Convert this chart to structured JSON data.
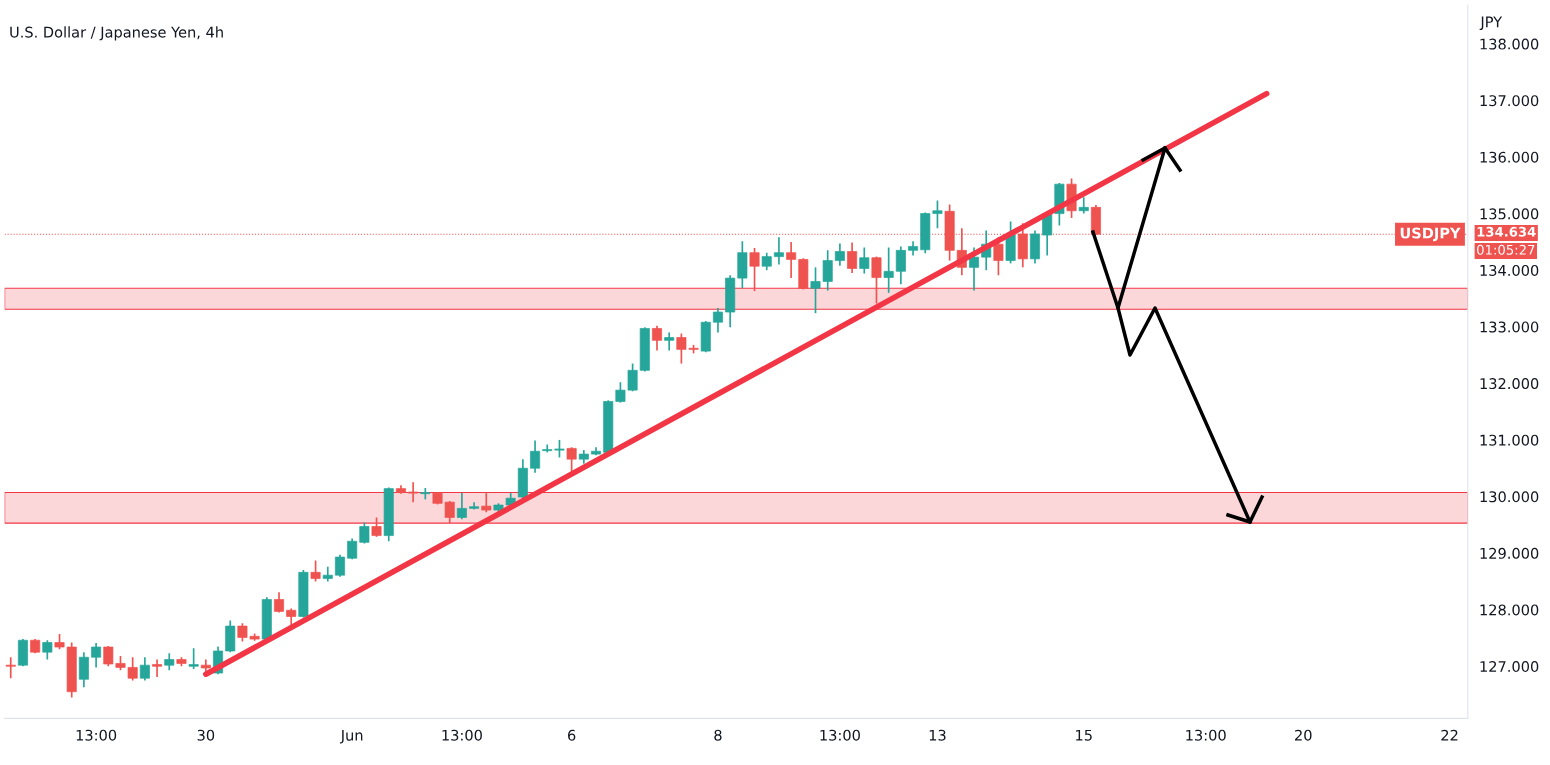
{
  "chart_data": {
    "type": "candlestick",
    "title": "U.S. Dollar / Japanese Yen, 4h",
    "ylabel": "JPY",
    "categories": [
      null,
      null,
      null,
      null,
      null,
      null,
      null,
      "13:00",
      null,
      null,
      null,
      null,
      null,
      null,
      null,
      null,
      "30",
      null,
      null,
      null,
      null,
      null,
      null,
      null,
      null,
      null,
      null,
      null,
      "Jun",
      null,
      null,
      null,
      null,
      null,
      null,
      null,
      null,
      "13:00",
      null,
      null,
      null,
      null,
      null,
      null,
      null,
      null,
      "6",
      null,
      null,
      null,
      null,
      null,
      null,
      null,
      null,
      null,
      null,
      null,
      "8",
      null,
      null,
      null,
      null,
      null,
      null,
      null,
      null,
      null,
      "13:00",
      null,
      null,
      null,
      null,
      null,
      null,
      null,
      "13",
      null,
      null,
      null,
      null,
      null,
      null,
      null,
      null,
      null,
      null,
      null,
      "15",
      null,
      null,
      null,
      null,
      null,
      null,
      null,
      null,
      null,
      "13:00",
      null,
      null,
      null,
      null,
      null,
      null,
      null,
      "20",
      null,
      null,
      null,
      null,
      null,
      null,
      null,
      null,
      null,
      null,
      null,
      "22",
      null
    ],
    "ohlc": [
      [
        127.02,
        127.16,
        126.79,
        127.0
      ],
      [
        127.02,
        127.48,
        127.0,
        127.46
      ],
      [
        127.46,
        127.48,
        127.23,
        127.25
      ],
      [
        127.25,
        127.46,
        127.12,
        127.42
      ],
      [
        127.42,
        127.57,
        127.3,
        127.34
      ],
      [
        127.34,
        127.42,
        126.45,
        126.55
      ],
      [
        126.77,
        127.25,
        126.63,
        127.16
      ],
      [
        127.16,
        127.41,
        126.98,
        127.34
      ],
      [
        127.34,
        127.36,
        127.0,
        127.04
      ],
      [
        127.05,
        127.18,
        126.93,
        126.98
      ],
      [
        126.98,
        127.16,
        126.75,
        126.79
      ],
      [
        126.79,
        127.16,
        126.75,
        127.02
      ],
      [
        127.03,
        127.12,
        126.81,
        127.0
      ],
      [
        127.02,
        127.23,
        126.93,
        127.12
      ],
      [
        127.12,
        127.16,
        127.0,
        127.05
      ],
      [
        127.0,
        127.32,
        126.95,
        127.03
      ],
      [
        127.02,
        127.12,
        126.9,
        126.97
      ],
      [
        126.88,
        127.35,
        126.86,
        127.27
      ],
      [
        127.27,
        127.81,
        127.25,
        127.71
      ],
      [
        127.71,
        127.76,
        127.44,
        127.51
      ],
      [
        127.53,
        127.58,
        127.45,
        127.48
      ],
      [
        127.48,
        128.22,
        127.46,
        128.18
      ],
      [
        128.18,
        128.31,
        127.95,
        127.97
      ],
      [
        127.99,
        128.02,
        127.72,
        127.88
      ],
      [
        127.88,
        128.7,
        127.86,
        128.66
      ],
      [
        128.66,
        128.87,
        128.5,
        128.55
      ],
      [
        128.55,
        128.76,
        128.5,
        128.61
      ],
      [
        128.61,
        128.97,
        128.58,
        128.93
      ],
      [
        128.91,
        129.26,
        128.89,
        129.21
      ],
      [
        129.19,
        129.54,
        129.17,
        129.47
      ],
      [
        129.47,
        129.63,
        129.29,
        129.31
      ],
      [
        129.31,
        130.16,
        129.21,
        130.14
      ],
      [
        130.14,
        130.2,
        130.05,
        130.07
      ],
      [
        130.08,
        130.25,
        129.9,
        130.06
      ],
      [
        130.05,
        130.15,
        129.95,
        130.07
      ],
      [
        130.06,
        130.08,
        129.86,
        129.88
      ],
      [
        129.9,
        129.92,
        129.53,
        129.63
      ],
      [
        129.63,
        130.06,
        129.6,
        129.79
      ],
      [
        129.79,
        129.9,
        129.77,
        129.82
      ],
      [
        129.83,
        130.06,
        129.72,
        129.76
      ],
      [
        129.76,
        129.88,
        129.73,
        129.85
      ],
      [
        129.85,
        130.06,
        129.83,
        129.97
      ],
      [
        129.99,
        130.66,
        129.97,
        130.5
      ],
      [
        130.5,
        130.99,
        130.42,
        130.8
      ],
      [
        130.81,
        130.92,
        130.78,
        130.83
      ],
      [
        130.82,
        131.0,
        130.69,
        130.84
      ],
      [
        130.85,
        130.87,
        130.43,
        130.66
      ],
      [
        130.66,
        130.82,
        130.58,
        130.75
      ],
      [
        130.75,
        130.87,
        130.73,
        130.8
      ],
      [
        130.78,
        131.7,
        130.76,
        131.68
      ],
      [
        131.68,
        132.02,
        131.66,
        131.88
      ],
      [
        131.88,
        132.35,
        131.86,
        132.23
      ],
      [
        132.23,
        132.99,
        132.21,
        132.97
      ],
      [
        132.97,
        133.02,
        132.58,
        132.76
      ],
      [
        132.76,
        132.9,
        132.58,
        132.81
      ],
      [
        132.81,
        132.88,
        132.35,
        132.6
      ],
      [
        132.62,
        132.68,
        132.53,
        132.6
      ],
      [
        132.57,
        133.1,
        132.55,
        133.08
      ],
      [
        133.08,
        133.33,
        132.9,
        133.26
      ],
      [
        133.26,
        133.91,
        132.99,
        133.86
      ],
      [
        133.86,
        134.51,
        133.68,
        134.31
      ],
      [
        134.31,
        134.39,
        133.63,
        134.07
      ],
      [
        134.07,
        134.31,
        134.0,
        134.24
      ],
      [
        134.24,
        134.58,
        134.1,
        134.31
      ],
      [
        134.31,
        134.5,
        133.86,
        134.19
      ],
      [
        134.19,
        134.21,
        133.66,
        133.68
      ],
      [
        133.68,
        134.05,
        133.24,
        133.8
      ],
      [
        133.8,
        134.35,
        133.64,
        134.17
      ],
      [
        134.17,
        134.47,
        134.08,
        134.33
      ],
      [
        134.33,
        134.49,
        133.95,
        134.03
      ],
      [
        134.03,
        134.4,
        133.94,
        134.22
      ],
      [
        134.22,
        134.24,
        133.41,
        133.87
      ],
      [
        133.87,
        134.4,
        133.6,
        133.98
      ],
      [
        133.98,
        134.42,
        133.75,
        134.35
      ],
      [
        134.35,
        134.51,
        134.26,
        134.42
      ],
      [
        134.36,
        135.02,
        134.3,
        135.0
      ],
      [
        135.0,
        135.23,
        134.74,
        135.05
      ],
      [
        135.04,
        135.16,
        134.17,
        134.35
      ],
      [
        134.35,
        134.74,
        133.91,
        134.05
      ],
      [
        134.05,
        134.4,
        133.64,
        134.23
      ],
      [
        134.23,
        134.7,
        134.0,
        134.46
      ],
      [
        134.46,
        134.58,
        133.91,
        134.17
      ],
      [
        134.17,
        134.86,
        134.12,
        134.62
      ],
      [
        134.64,
        134.83,
        134.05,
        134.2
      ],
      [
        134.2,
        134.7,
        134.12,
        134.64
      ],
      [
        134.62,
        135.02,
        134.26,
        135.0
      ],
      [
        135.0,
        135.54,
        134.79,
        135.52
      ],
      [
        135.52,
        135.62,
        134.92,
        135.05
      ],
      [
        135.05,
        135.29,
        135.0,
        135.11
      ],
      [
        135.11,
        135.15,
        134.62,
        134.634
      ],
      null,
      null,
      null,
      null,
      null,
      null,
      null,
      null,
      null,
      null,
      null,
      null,
      null,
      null,
      null,
      null,
      null,
      null,
      null,
      null,
      null,
      null,
      null,
      null,
      null,
      null,
      null,
      null,
      null,
      null
    ],
    "colors": [
      "#ef5350",
      "#26a69a",
      "#ef5350",
      "#26a69a",
      "#ef5350",
      "#ef5350",
      "#26a69a",
      "#26a69a",
      "#ef5350",
      "#ef5350",
      "#ef5350",
      "#26a69a",
      "#ef5350",
      "#26a69a",
      "#ef5350",
      "#26a69a",
      "#ef5350",
      "#26a69a",
      "#26a69a",
      "#ef5350",
      "#ef5350",
      "#26a69a",
      "#ef5350",
      "#ef5350",
      "#26a69a",
      "#ef5350",
      "#26a69a",
      "#26a69a",
      "#26a69a",
      "#26a69a",
      "#ef5350",
      "#26a69a",
      "#ef5350",
      "#ef5350",
      "#26a69a",
      "#ef5350",
      "#ef5350",
      "#26a69a",
      "#26a69a",
      "#ef5350",
      "#26a69a",
      "#26a69a",
      "#26a69a",
      "#26a69a",
      "#26a69a",
      "#26a69a",
      "#ef5350",
      "#26a69a",
      "#26a69a",
      "#26a69a",
      "#26a69a",
      "#26a69a",
      "#26a69a",
      "#ef5350",
      "#26a69a",
      "#ef5350",
      "#ef5350",
      "#26a69a",
      "#26a69a",
      "#26a69a",
      "#26a69a",
      "#ef5350",
      "#26a69a",
      "#26a69a",
      "#ef5350",
      "#ef5350",
      "#26a69a",
      "#26a69a",
      "#26a69a",
      "#ef5350",
      "#26a69a",
      "#ef5350",
      "#26a69a",
      "#26a69a",
      "#26a69a",
      "#26a69a",
      "#26a69a",
      "#ef5350",
      "#ef5350",
      "#26a69a",
      "#26a69a",
      "#ef5350",
      "#26a69a",
      "#ef5350",
      "#26a69a",
      "#26a69a",
      "#26a69a",
      "#ef5350",
      "#26a69a",
      "#ef5350",
      null,
      null,
      null,
      null,
      null,
      null,
      null,
      null,
      null,
      null,
      null,
      null,
      null,
      null,
      null,
      null,
      null,
      null,
      null,
      null,
      null,
      null,
      null,
      null,
      null,
      null,
      null,
      null,
      null,
      null
    ],
    "series": [
      {
        "type": "line",
        "values": [
          null,
          null,
          null,
          null,
          null,
          null,
          null,
          null,
          null,
          null,
          null,
          null,
          null,
          null,
          null,
          null,
          126.86,
          null,
          null,
          null,
          null,
          null,
          null,
          null,
          null,
          null,
          null,
          null,
          null,
          null,
          null,
          null,
          null,
          null,
          null,
          null,
          null,
          null,
          null,
          null,
          null,
          null,
          null,
          null,
          null,
          null,
          null,
          null,
          null,
          null,
          null,
          null,
          null,
          null,
          null,
          null,
          null,
          null,
          null,
          null,
          null,
          null,
          null,
          null,
          null,
          null,
          null,
          null,
          null,
          null,
          null,
          null,
          null,
          null,
          null,
          null,
          null,
          null,
          null,
          null,
          null,
          null,
          null,
          null,
          null,
          null,
          null,
          null,
          null,
          null,
          null,
          null,
          null,
          null,
          null,
          null,
          null,
          null,
          null,
          null,
          null,
          null,
          null,
          137.12,
          null,
          null,
          null,
          null,
          null,
          null,
          null,
          null,
          null,
          null,
          null,
          null,
          null,
          null,
          null,
          null
        ],
        "color": "#f23645"
      }
    ],
    "ylim": [
      126.08,
      138.68
    ],
    "yticks": [
      {
        "value": 127,
        "label": "127.000"
      },
      {
        "value": 128,
        "label": "128.000"
      },
      {
        "value": 129,
        "label": "129.000"
      },
      {
        "value": 130,
        "label": "130.000"
      },
      {
        "value": 131,
        "label": "131.000"
      },
      {
        "value": 132,
        "label": "132.000"
      },
      {
        "value": 133,
        "label": "133.000"
      },
      {
        "value": 134,
        "label": "134.000"
      },
      {
        "value": 135,
        "label": "135.000"
      },
      {
        "value": 136,
        "label": "136.000"
      },
      {
        "value": 137,
        "label": "137.000"
      },
      {
        "value": 138,
        "label": "138.000"
      }
    ],
    "ref_lines": [
      {
        "axis": "y",
        "value": 134.634,
        "label": "USDJPY",
        "color": "#ef5350",
        "line_style": "dotted"
      }
    ],
    "bands": [
      {
        "axis": "y",
        "from": 133.31,
        "to": 133.68,
        "color": "#f23645"
      },
      {
        "axis": "y",
        "from": 129.53,
        "to": 130.07,
        "color": "#f23645"
      }
    ],
    "annotations": [
      "134.634",
      "01:05:27"
    ],
    "grid": false,
    "legend": false
  }
}
